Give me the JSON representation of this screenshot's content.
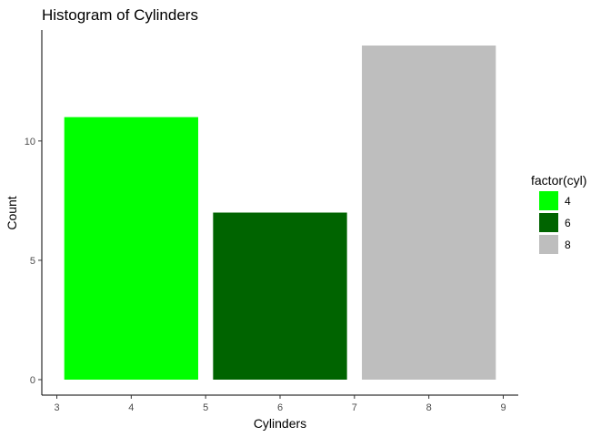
{
  "chart_data": {
    "type": "bar",
    "title": "Histogram of Cylinders",
    "xlabel": "Cylinders",
    "ylabel": "Count",
    "xlim": [
      3,
      9
    ],
    "ylim": [
      0,
      14
    ],
    "x_ticks": [
      "3",
      "4",
      "5",
      "6",
      "7",
      "8",
      "9"
    ],
    "y_ticks": [
      "0",
      "5",
      "10"
    ],
    "grid": false,
    "legend_position": "right",
    "legend_title": "factor(cyl)",
    "bars": [
      {
        "category": "4",
        "x_start": 3.1,
        "x_end": 4.9,
        "value": 11,
        "color": "#00FF00"
      },
      {
        "category": "6",
        "x_start": 5.1,
        "x_end": 6.9,
        "value": 7,
        "color": "#006400"
      },
      {
        "category": "8",
        "x_start": 7.1,
        "x_end": 8.9,
        "value": 14,
        "color": "#BEBEBE"
      }
    ],
    "legend": [
      {
        "label": "4",
        "color": "#00FF00"
      },
      {
        "label": "6",
        "color": "#006400"
      },
      {
        "label": "8",
        "color": "#BEBEBE"
      }
    ]
  }
}
